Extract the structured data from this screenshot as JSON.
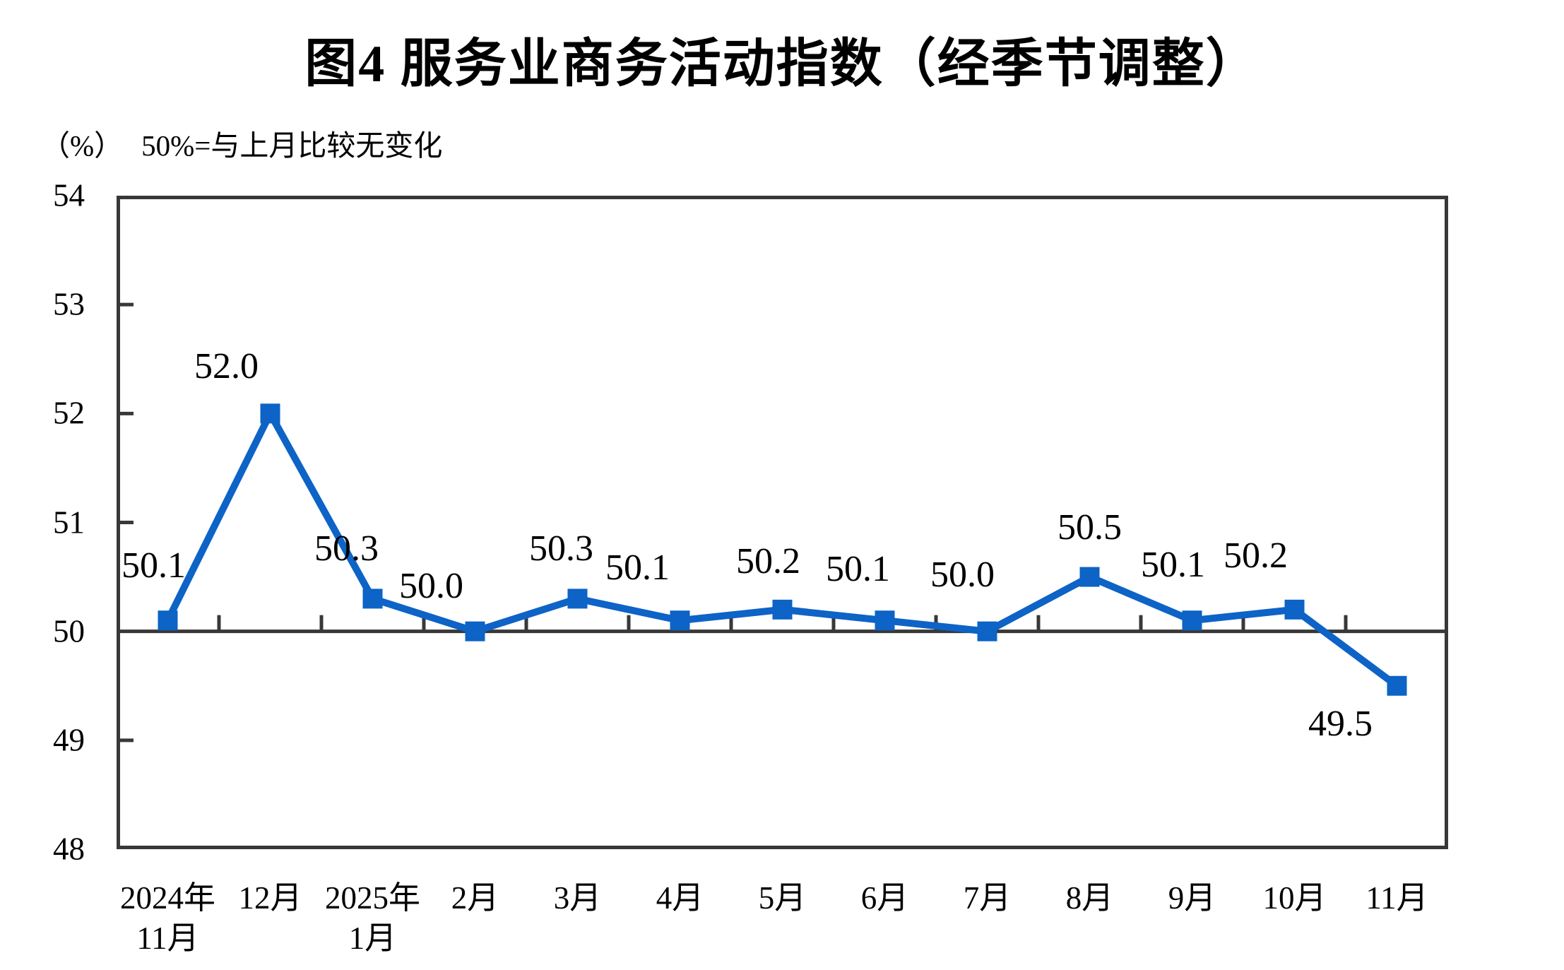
{
  "page": {
    "background": "#ffffff"
  },
  "chart_data": {
    "type": "line",
    "title": "图4  服务业商务活动指数（经季节调整）",
    "unit_label": "（%）",
    "reference_note": "50%=与上月比较无变化",
    "categories": [
      "2024年11月",
      "12月",
      "2025年1月",
      "2月",
      "3月",
      "4月",
      "5月",
      "6月",
      "7月",
      "8月",
      "9月",
      "10月",
      "11月"
    ],
    "category_display_lines": [
      [
        "2024年",
        "11月"
      ],
      [
        "12月"
      ],
      [
        "2025年",
        "1月"
      ],
      [
        "2月"
      ],
      [
        "3月"
      ],
      [
        "4月"
      ],
      [
        "5月"
      ],
      [
        "6月"
      ],
      [
        "7月"
      ],
      [
        "8月"
      ],
      [
        "9月"
      ],
      [
        "10月"
      ],
      [
        "11月"
      ]
    ],
    "series": [
      {
        "name": "服务业商务活动指数",
        "values": [
          50.1,
          52.0,
          50.3,
          50.0,
          50.3,
          50.1,
          50.2,
          50.1,
          50.0,
          50.5,
          50.1,
          50.2,
          49.5
        ]
      }
    ],
    "data_labels": [
      "50.1",
      "52.0",
      "50.3",
      "50.0",
      "50.3",
      "50.1",
      "50.2",
      "50.1",
      "50.0",
      "50.5",
      "50.1",
      "50.2",
      "49.5"
    ],
    "ylim": [
      48,
      54
    ],
    "yticks": [
      54,
      53,
      52,
      51,
      50,
      49,
      48
    ],
    "ytick_step": 1,
    "reference_line": 50,
    "grid": "off",
    "legend": "none",
    "marker": "square",
    "line_color": "#0d63c6",
    "axis_color": "#383838",
    "text_color": "#000000"
  }
}
